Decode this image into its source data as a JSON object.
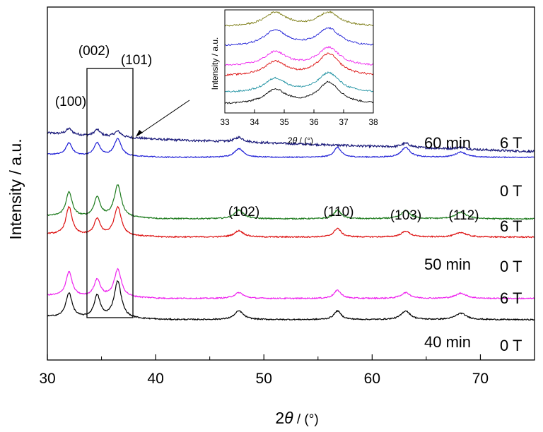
{
  "chart_data": {
    "type": "line",
    "xlabel_italic": "θ",
    "xlabel_prefix": "2",
    "xlabel_unit": " / (°)",
    "ylabel": "Intensity / a.u.",
    "xlim": [
      30,
      75
    ],
    "xticks": [
      "30",
      "40",
      "50",
      "60",
      "70"
    ],
    "peaks": [
      {
        "label": "(100)",
        "x": 32.0
      },
      {
        "label": "(002)",
        "x": 34.6
      },
      {
        "label": "(101)",
        "x": 36.5
      },
      {
        "label": "(102)",
        "x": 47.7
      },
      {
        "label": "(110)",
        "x": 56.8
      },
      {
        "label": "(103)",
        "x": 63.1
      },
      {
        "label": "(112)",
        "x": 68.2
      }
    ],
    "groups": [
      {
        "time": "60 min",
        "field_top": "6 T",
        "field_bottom": "0 T"
      },
      {
        "time": "50 min",
        "field_top": "6 T",
        "field_bottom": "0 T"
      },
      {
        "time": "40 min",
        "field_top": "6 T",
        "field_bottom": "0 T"
      }
    ],
    "series": [
      {
        "color": "#1a1a7a",
        "base": 0.62,
        "amps": [
          0.5,
          0.55,
          0.5,
          0.4,
          0.0,
          0.35,
          0.15
        ],
        "slope": 0.003,
        "noise": 0.18
      },
      {
        "color": "#1f1fd6",
        "base": 0.55,
        "amps": [
          1.05,
          1.1,
          1.5,
          0.75,
          0.85,
          0.85,
          0.45
        ],
        "slope": 0.0,
        "noise": 0.08
      },
      {
        "color": "#1c7a1c",
        "base": 0.6,
        "amps": [
          2.1,
          1.7,
          2.8,
          0.75,
          0.75,
          0.7,
          0.55
        ],
        "slope": 0.0,
        "noise": 0.1
      },
      {
        "color": "#dd1111",
        "base": 0.55,
        "amps": [
          2.4,
          1.4,
          2.5,
          0.55,
          0.75,
          0.5,
          0.4
        ],
        "slope": 0.0,
        "noise": 0.1
      },
      {
        "color": "#ee22ee",
        "base": 0.55,
        "amps": [
          2.1,
          1.5,
          2.4,
          0.5,
          0.7,
          0.5,
          0.45
        ],
        "slope": 0.0,
        "noise": 0.1
      },
      {
        "color": "#000000",
        "base": 0.55,
        "amps": [
          2.1,
          1.9,
          3.2,
          0.75,
          0.75,
          0.75,
          0.55
        ],
        "slope": 0.0,
        "noise": 0.1
      }
    ],
    "inset": {
      "ylabel": "Intensity / a.u.",
      "xlim": [
        33,
        38
      ],
      "xticks": [
        "33",
        "34",
        "35",
        "36",
        "37",
        "38"
      ],
      "xlabel_prefix": "2",
      "xlabel_italic": "θ",
      "xlabel_unit": " / (°)"
    }
  }
}
